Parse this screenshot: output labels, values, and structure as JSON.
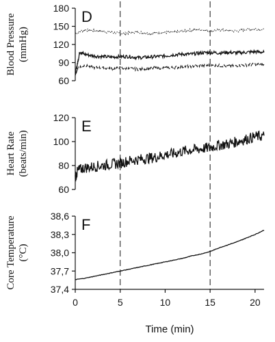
{
  "chart_data": [
    {
      "type": "line",
      "panel_label": "D",
      "ylabel_line1": "Blood Pressure",
      "ylabel_line2": "(mmHg)",
      "ylim": [
        60,
        180
      ],
      "yticks": [
        60,
        90,
        120,
        150,
        180
      ],
      "ytick_labels": [
        "60",
        "90",
        "120",
        "150",
        "180"
      ],
      "xlim": [
        0,
        21
      ],
      "series": [
        {
          "style": "dotted",
          "x": [
            0,
            1,
            2,
            3,
            4,
            5,
            6,
            7,
            8,
            9,
            10,
            11,
            12,
            13,
            14,
            15,
            16,
            17,
            18,
            19,
            20,
            21
          ],
          "values": [
            138,
            144,
            143,
            142,
            140,
            138,
            139,
            141,
            138,
            139,
            140,
            140,
            142,
            144,
            145,
            142,
            144,
            143,
            142,
            145,
            146,
            144
          ]
        },
        {
          "style": "solid",
          "x": [
            0,
            0.3,
            0.5,
            1,
            2,
            3,
            4,
            5,
            6,
            7,
            8,
            9,
            10,
            11,
            12,
            13,
            14,
            15,
            16,
            17,
            18,
            19,
            20,
            21
          ],
          "values": [
            72,
            92,
            108,
            104,
            101,
            100,
            99,
            100,
            100,
            98,
            99,
            100,
            101,
            103,
            104,
            104,
            106,
            107,
            106,
            107,
            106,
            107,
            108,
            107
          ]
        },
        {
          "style": "dashed",
          "x": [
            0,
            0.3,
            1,
            2,
            3,
            4,
            5,
            6,
            7,
            8,
            9,
            10,
            11,
            12,
            13,
            14,
            15,
            16,
            17,
            18,
            19,
            20,
            21
          ],
          "values": [
            70,
            82,
            85,
            82,
            81,
            80,
            81,
            80,
            79,
            80,
            81,
            81,
            82,
            83,
            84,
            85,
            85,
            85,
            84,
            85,
            86,
            87,
            86
          ]
        }
      ]
    },
    {
      "type": "line",
      "panel_label": "E",
      "ylabel_line1": "Heart Rate",
      "ylabel_line2": "(beats/min)",
      "ylim": [
        60,
        120
      ],
      "yticks": [
        60,
        80,
        100,
        120
      ],
      "ytick_labels": [
        "60",
        "80",
        "100",
        "120"
      ],
      "xlim": [
        0,
        21
      ],
      "series": [
        {
          "style": "solid",
          "x": [
            0,
            0.3,
            1,
            2,
            3,
            4,
            5,
            6,
            7,
            8,
            9,
            10,
            11,
            12,
            13,
            14,
            15,
            16,
            17,
            18,
            19,
            20,
            21
          ],
          "values": [
            70,
            76,
            78,
            79,
            80,
            81,
            82,
            84,
            85,
            86,
            87,
            89,
            90,
            92,
            93,
            94,
            95,
            97,
            98,
            100,
            102,
            104,
            105
          ]
        }
      ]
    },
    {
      "type": "line",
      "panel_label": "F",
      "ylabel_line1": "Core Temperature",
      "ylabel_line2": "(°C)",
      "ylim": [
        37.4,
        38.6
      ],
      "yticks": [
        37.4,
        37.7,
        38.0,
        38.3,
        38.6
      ],
      "ytick_labels": [
        "37,4",
        "37,7",
        "38,0",
        "38,3",
        "38,6"
      ],
      "xlim": [
        0,
        21
      ],
      "xticks": [
        0,
        5,
        10,
        15,
        20
      ],
      "xtick_labels": [
        "0",
        "5",
        "10",
        "15",
        "20"
      ],
      "xlabel": "Time (min)",
      "series": [
        {
          "style": "solid",
          "x": [
            0,
            1,
            2,
            3,
            4,
            5,
            6,
            7,
            8,
            9,
            10,
            11,
            12,
            13,
            14,
            15,
            16,
            17,
            18,
            19,
            20,
            21
          ],
          "values": [
            37.56,
            37.58,
            37.61,
            37.64,
            37.67,
            37.7,
            37.73,
            37.76,
            37.79,
            37.82,
            37.85,
            37.88,
            37.91,
            37.95,
            37.98,
            38.02,
            38.08,
            38.13,
            38.18,
            38.24,
            38.3,
            38.37
          ]
        }
      ]
    }
  ],
  "markers": {
    "style": "dashed",
    "x": [
      5,
      15
    ]
  },
  "colors": {
    "line": "#111111",
    "axis": "#111111"
  }
}
